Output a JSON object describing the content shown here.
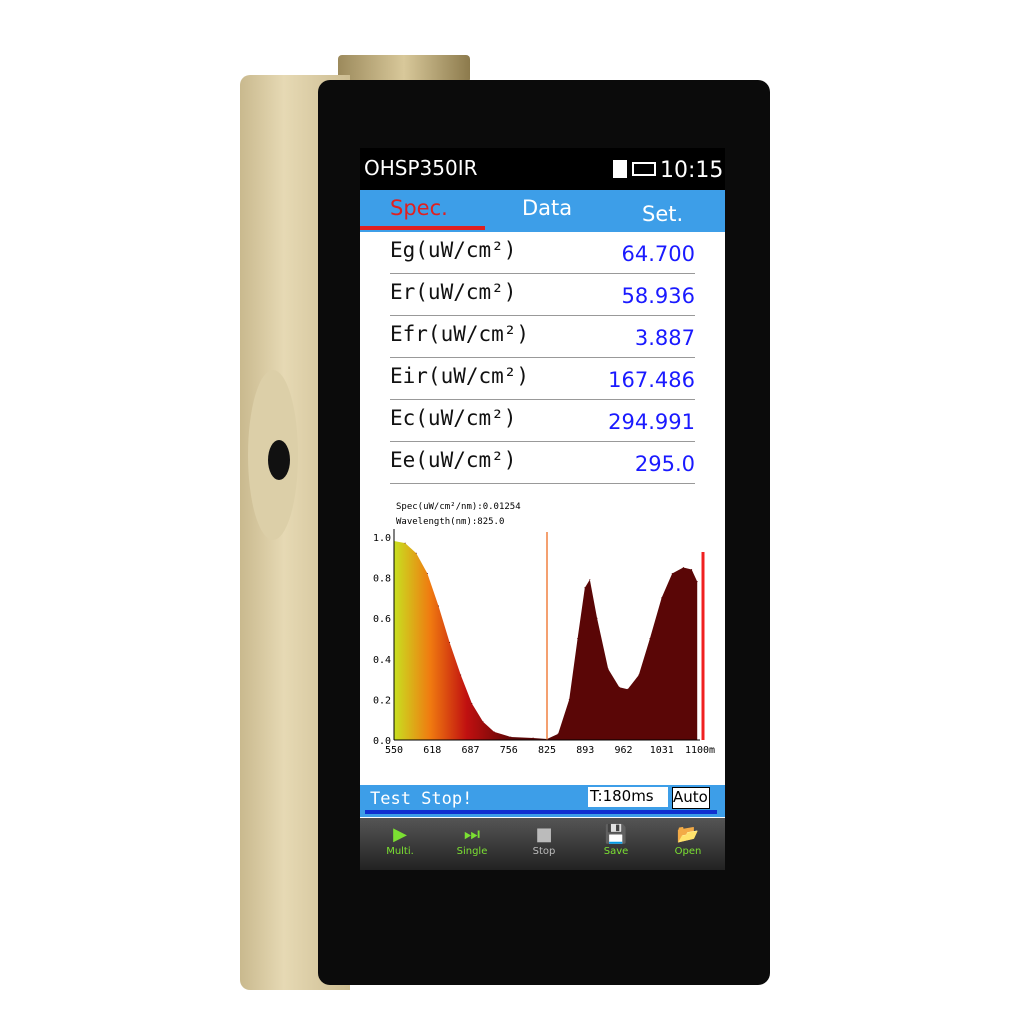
{
  "device": {
    "title": "OHSP350IR",
    "time": "10:15",
    "icons": [
      "sd-card-icon",
      "battery-icon"
    ]
  },
  "tabs": [
    {
      "label": "Spec.",
      "active": true
    },
    {
      "label": "Data"
    },
    {
      "label": "Set."
    }
  ],
  "readings": [
    {
      "label": "Eg(uW/cm²)",
      "value": "64.700"
    },
    {
      "label": "Er(uW/cm²)",
      "value": "58.936"
    },
    {
      "label": "Efr(uW/cm²)",
      "value": "3.887"
    },
    {
      "label": "Eir(uW/cm²)",
      "value": "167.486"
    },
    {
      "label": "Ec(uW/cm²)",
      "value": "294.991"
    },
    {
      "label": "Ee(uW/cm²)",
      "value": "295.0"
    }
  ],
  "chart_data": {
    "type": "area",
    "annotations": [
      "Spec(uW/cm²/nm):0.01254",
      "Wavelength(nm):825.0"
    ],
    "x_tick_labels": [
      "550",
      "618",
      "687",
      "756",
      "825",
      "893",
      "962",
      "1031",
      "1100m"
    ],
    "y_tick_labels": [
      "0.0",
      "0.2",
      "0.4",
      "0.6",
      "0.8",
      "1.0"
    ],
    "xlim": [
      550,
      1100
    ],
    "ylim": [
      0,
      1.0
    ],
    "marker_x": 825,
    "x": [
      550,
      570,
      590,
      610,
      630,
      650,
      670,
      690,
      710,
      730,
      760,
      800,
      825,
      845,
      865,
      880,
      893,
      902,
      915,
      935,
      955,
      970,
      990,
      1010,
      1031,
      1050,
      1070,
      1085,
      1095
    ],
    "y": [
      0.98,
      0.97,
      0.92,
      0.82,
      0.66,
      0.48,
      0.32,
      0.18,
      0.09,
      0.04,
      0.015,
      0.01,
      0.005,
      0.03,
      0.2,
      0.5,
      0.75,
      0.79,
      0.6,
      0.35,
      0.26,
      0.25,
      0.32,
      0.5,
      0.7,
      0.82,
      0.85,
      0.84,
      0.78
    ],
    "colors": {
      "fill_start": "#c8e020",
      "fill_mid": "#f07a10",
      "fill_red": "#c01010",
      "fill_end": "#5a0606",
      "marker": "#f08040"
    }
  },
  "status": {
    "text": "Test Stop!",
    "time": "T:180ms",
    "mode": "Auto"
  },
  "toolbar": [
    {
      "label": "Multi.",
      "icon": "play-icon",
      "glyph": "▶"
    },
    {
      "label": "Single",
      "icon": "step-forward-icon",
      "glyph": "⏭"
    },
    {
      "label": "Stop",
      "icon": "stop-icon",
      "glyph": "■"
    },
    {
      "label": "Save",
      "icon": "save-icon",
      "glyph": "💾"
    },
    {
      "label": "Open",
      "icon": "folder-open-icon",
      "glyph": "📂"
    }
  ]
}
